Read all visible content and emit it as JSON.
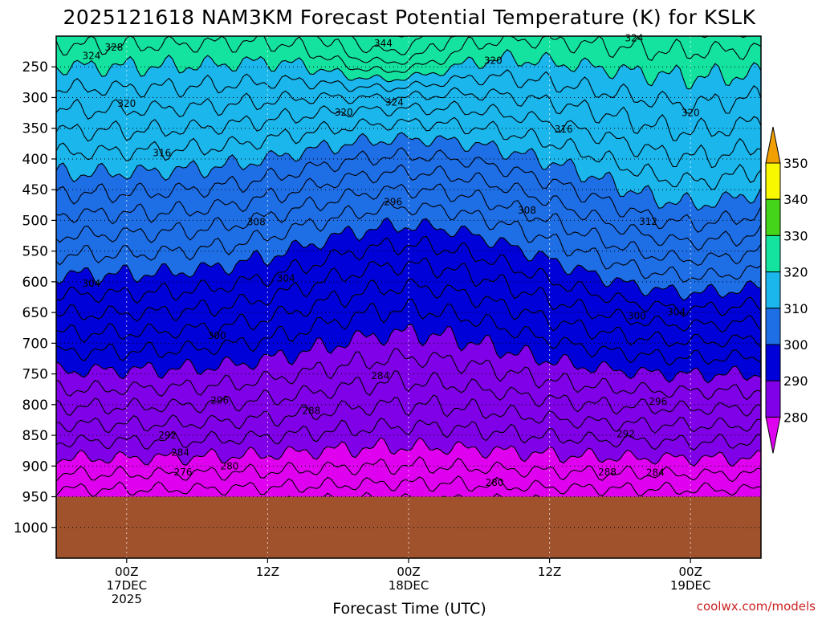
{
  "chart_data": {
    "type": "heatmap",
    "title": "2025121618 NAM3KM Forecast Potential Temperature (K) for KSLK",
    "xlabel": "Forecast Time (UTC)",
    "ylabel": "",
    "credit": "coolwx.com/models",
    "y_ticks": [
      "250",
      "300",
      "350",
      "400",
      "450",
      "500",
      "550",
      "600",
      "650",
      "700",
      "750",
      "800",
      "850",
      "900",
      "950",
      "1000"
    ],
    "y_tick_values": [
      250,
      300,
      350,
      400,
      450,
      500,
      550,
      600,
      650,
      700,
      750,
      800,
      850,
      900,
      950,
      1000
    ],
    "ylim": [
      200,
      1050
    ],
    "xlim_hours": [
      -5,
      45
    ],
    "x_ticks": [
      {
        "hour": 0,
        "lines": [
          "00Z",
          "17DEC",
          "2025"
        ]
      },
      {
        "hour": 10,
        "lines": [
          "12Z"
        ]
      },
      {
        "hour": 20,
        "lines": [
          "00Z",
          "18DEC"
        ]
      },
      {
        "hour": 30,
        "lines": [
          "12Z"
        ]
      },
      {
        "hour": 40,
        "lines": [
          "00Z",
          "19DEC"
        ]
      }
    ],
    "colorbar": {
      "labels": [
        "280",
        "290",
        "300",
        "310",
        "320",
        "330",
        "340",
        "350"
      ],
      "levels": [
        270,
        280,
        290,
        300,
        310,
        320,
        330,
        340,
        350,
        360
      ],
      "colors": [
        "#e000f0",
        "#8000e8",
        "#0000d8",
        "#1e6ee6",
        "#1ab6ec",
        "#14e3a0",
        "#44d41a",
        "#f8f800",
        "#f0a000"
      ]
    },
    "terrain_color": "#a0522d",
    "surface_pressure": 950,
    "contour_labels": [
      {
        "text": "328",
        "t": -0.9,
        "p": 218
      },
      {
        "text": "324",
        "t": -2.5,
        "p": 232
      },
      {
        "text": "344",
        "t": 18.2,
        "p": 212
      },
      {
        "text": "324",
        "t": 36,
        "p": 203
      },
      {
        "text": "320",
        "t": 26,
        "p": 240
      },
      {
        "text": "320",
        "t": 0,
        "p": 310
      },
      {
        "text": "324",
        "t": 19,
        "p": 308
      },
      {
        "text": "320",
        "t": 15.4,
        "p": 324
      },
      {
        "text": "316",
        "t": 31,
        "p": 352
      },
      {
        "text": "320",
        "t": 40,
        "p": 325
      },
      {
        "text": "316",
        "t": 2.5,
        "p": 390
      },
      {
        "text": "296",
        "t": 18.9,
        "p": 470
      },
      {
        "text": "308",
        "t": 9.2,
        "p": 503
      },
      {
        "text": "308",
        "t": 28.4,
        "p": 484
      },
      {
        "text": "312",
        "t": 37,
        "p": 502
      },
      {
        "text": "304",
        "t": -2.5,
        "p": 603
      },
      {
        "text": "304",
        "t": 11.3,
        "p": 594
      },
      {
        "text": "300",
        "t": 36.2,
        "p": 656
      },
      {
        "text": "304",
        "t": 39,
        "p": 649
      },
      {
        "text": "300",
        "t": 6.4,
        "p": 688
      },
      {
        "text": "284",
        "t": 18,
        "p": 753
      },
      {
        "text": "296",
        "t": 6.6,
        "p": 793
      },
      {
        "text": "288",
        "t": 13.1,
        "p": 810
      },
      {
        "text": "296",
        "t": 37.7,
        "p": 795
      },
      {
        "text": "292",
        "t": 2.9,
        "p": 850
      },
      {
        "text": "284",
        "t": 3.8,
        "p": 878
      },
      {
        "text": "292",
        "t": 35.4,
        "p": 848
      },
      {
        "text": "280",
        "t": 7.3,
        "p": 900
      },
      {
        "text": "276",
        "t": 4,
        "p": 910
      },
      {
        "text": "288",
        "t": 34.1,
        "p": 910
      },
      {
        "text": "284",
        "t": 37.5,
        "p": 911
      },
      {
        "text": "280",
        "t": 26.1,
        "p": 927
      }
    ]
  }
}
